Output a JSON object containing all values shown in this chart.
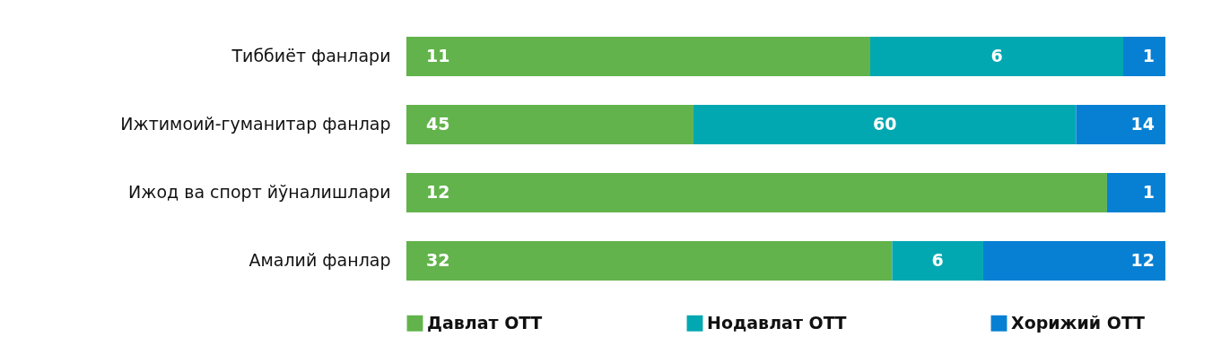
{
  "chart_data": [
    {
      "type": "bar",
      "orientation": "horizontal",
      "stacked": true,
      "data_labels": true,
      "categories": [
        "Тиббиёт фанлари"
      ],
      "legend": "bottom",
      "series": [
        {
          "name": "Давлат ОТТ",
          "color": "#62b34b",
          "values": [
            11
          ]
        },
        {
          "name": "Нодавлат ОТТ",
          "color": "#02a8b1",
          "values": [
            6
          ]
        },
        {
          "name": "Хорижий ОТТ",
          "color": "#0780d3",
          "values": [
            1
          ]
        }
      ]
    },
    {
      "type": "bar",
      "orientation": "horizontal",
      "stacked": true,
      "data_labels": true,
      "categories": [
        "Ижтимоий-гуманитар фанлар"
      ],
      "legend": "bottom",
      "series": [
        {
          "name": "Давлат ОТТ",
          "color": "#62b34b",
          "values": [
            45
          ]
        },
        {
          "name": "Нодавлат ОТТ",
          "color": "#02a8b1",
          "values": [
            60
          ]
        },
        {
          "name": "Хорижий ОТТ",
          "color": "#0780d3",
          "values": [
            14
          ]
        }
      ]
    },
    {
      "type": "bar",
      "orientation": "horizontal",
      "stacked": true,
      "data_labels": true,
      "categories": [
        "Ижод ва спорт йўналишлари"
      ],
      "legend": "bottom",
      "series": [
        {
          "name": "Давлат ОТТ",
          "color": "#62b34b",
          "values": [
            12
          ]
        },
        {
          "name": "Нодавлат ОТТ",
          "color": "#02a8b1",
          "values": [
            null
          ]
        },
        {
          "name": "Хорижий ОТТ",
          "color": "#0780d3",
          "values": [
            1
          ]
        }
      ]
    },
    {
      "type": "bar",
      "orientation": "horizontal",
      "stacked": true,
      "data_labels": true,
      "categories": [
        "Амалий фанлар"
      ],
      "legend": "bottom",
      "series": [
        {
          "name": "Давлат ОТТ",
          "color": "#62b34b",
          "values": [
            32
          ]
        },
        {
          "name": "Нодавлат ОТТ",
          "color": "#02a8b1",
          "values": [
            6
          ]
        },
        {
          "name": "Хорижий ОТТ",
          "color": "#0780d3",
          "values": [
            12
          ]
        }
      ]
    }
  ]
}
